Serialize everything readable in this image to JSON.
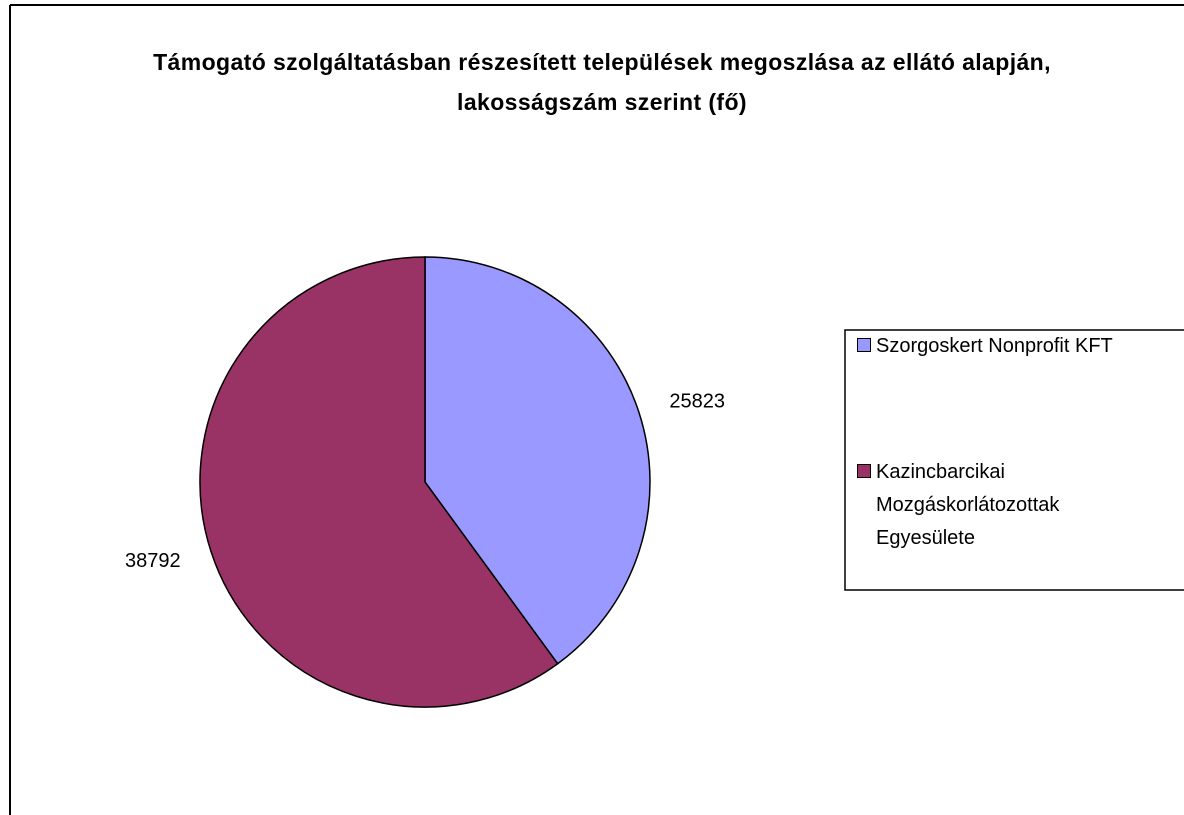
{
  "chart_data": {
    "type": "pie",
    "title": "Támogató szolgáltatásban részesített települések megoszlása az ellátó alapján, lakosságszám szerint (fő)",
    "categories": [
      "Szorgoskert Nonprofit KFT",
      "Kazincbarcikai Mozgáskorlátozottak Egyesülete"
    ],
    "values": [
      25823,
      38792
    ],
    "colors": [
      "#9999ff",
      "#993366"
    ],
    "legend": "right"
  }
}
